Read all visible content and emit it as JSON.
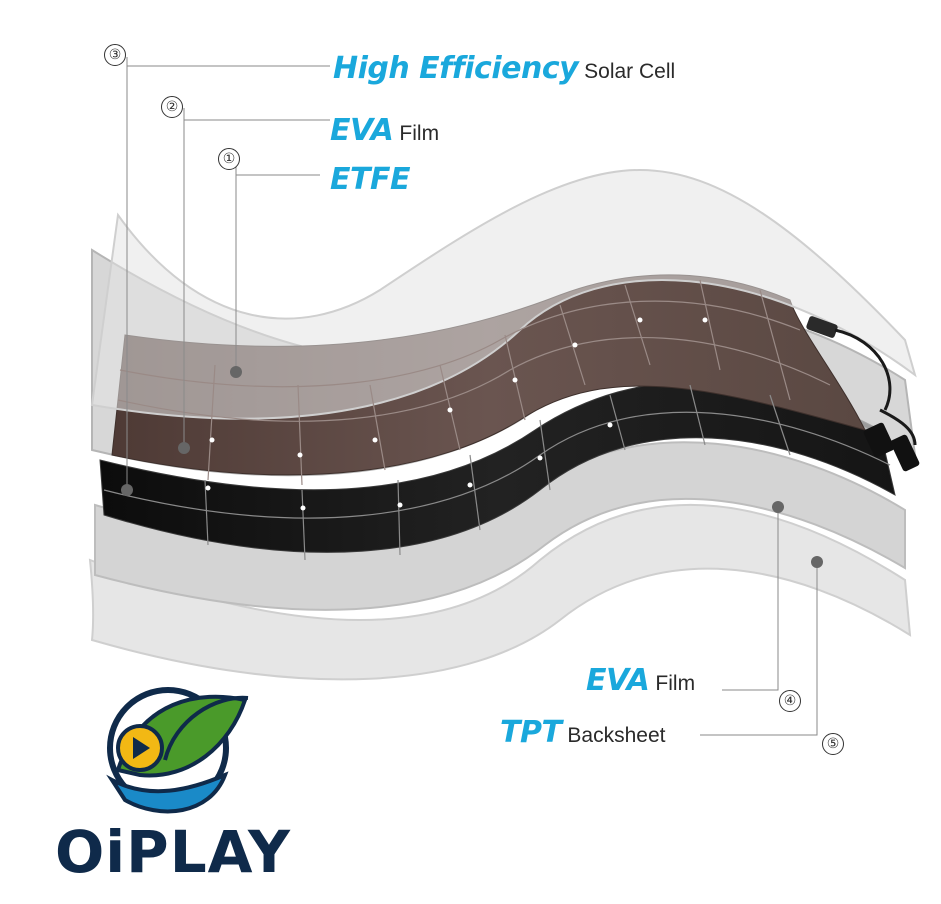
{
  "layers": {
    "top": [
      {
        "marker": "③",
        "highlight": "High Efficiency",
        "text": "Solar Cell"
      },
      {
        "marker": "②",
        "highlight": "EVA",
        "text": "Film"
      },
      {
        "marker": "①",
        "highlight": "ETFE",
        "text": ""
      }
    ],
    "bottom": [
      {
        "marker": "④",
        "highlight": "EVA",
        "text": "Film"
      },
      {
        "marker": "⑤",
        "highlight": "TPT",
        "text": "Backsheet"
      }
    ]
  },
  "logo": {
    "text": "OiPLAY",
    "icon": "leaf-play-wave-icon"
  },
  "colors": {
    "accent": "#1aa8dc",
    "label_text": "#2a2a2a",
    "layer_light": "#e2e2e2",
    "layer_mid": "#cfcfcf",
    "cell_brown": "#5a4640",
    "cell_black": "#141414",
    "logo_navy": "#0f2a4a",
    "logo_green": "#4a9a2a"
  }
}
